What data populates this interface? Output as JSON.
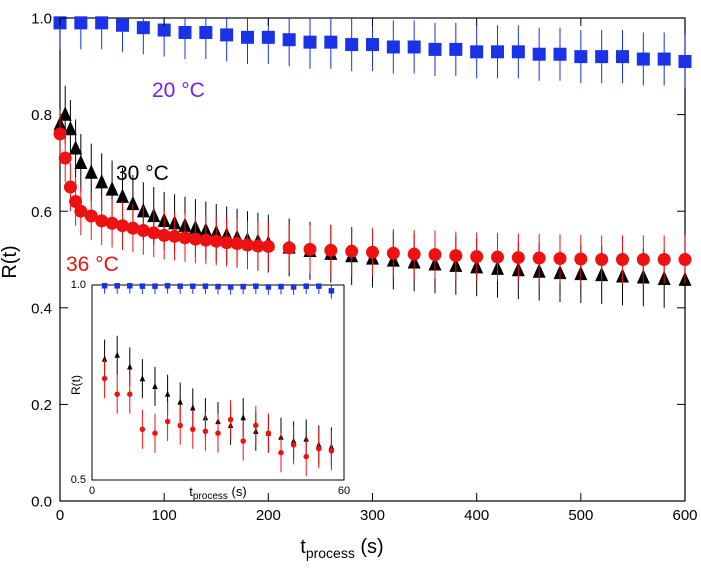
{
  "chart_data": [
    {
      "type": "scatter",
      "xlabel": "t",
      "xlabel_sub": "process",
      "xlabel_unit": " (s)",
      "ylabel": "R(t)",
      "xlim": [
        0,
        600
      ],
      "ylim": [
        0.0,
        1.0
      ],
      "xticks": [
        0,
        100,
        200,
        300,
        400,
        500,
        600
      ],
      "yticks": [
        0.0,
        0.2,
        0.4,
        0.6,
        0.8,
        1.0
      ],
      "xtick_labels": [
        "0",
        "100",
        "200",
        "300",
        "400",
        "500",
        "600"
      ],
      "ytick_labels": [
        "0.0",
        "0.2",
        "0.4",
        "0.6",
        "0.8",
        "1.0"
      ],
      "grid": false,
      "annotations": [
        {
          "text": "20 °C",
          "color": "#7b1fe0"
        },
        {
          "text": "30 °C",
          "color": "#000000"
        },
        {
          "text": "36 °C",
          "color": "#ee1111"
        }
      ],
      "series": [
        {
          "marker": "square",
          "color": "#1a33e6",
          "errorbar": 0.055,
          "x": [
            0,
            20,
            40,
            60,
            80,
            100,
            120,
            140,
            160,
            180,
            200,
            220,
            240,
            260,
            280,
            300,
            320,
            340,
            360,
            380,
            400,
            420,
            440,
            460,
            480,
            500,
            520,
            540,
            560,
            580,
            600
          ],
          "y": [
            0.99,
            0.99,
            0.99,
            0.985,
            0.98,
            0.975,
            0.97,
            0.97,
            0.965,
            0.96,
            0.96,
            0.955,
            0.95,
            0.95,
            0.945,
            0.945,
            0.94,
            0.94,
            0.935,
            0.935,
            0.93,
            0.93,
            0.93,
            0.925,
            0.925,
            0.92,
            0.92,
            0.92,
            0.915,
            0.915,
            0.91
          ]
        },
        {
          "marker": "triangle",
          "color": "#000000",
          "errorbar": 0.06,
          "x": [
            0,
            5,
            10,
            15,
            20,
            30,
            40,
            50,
            60,
            70,
            80,
            90,
            100,
            110,
            120,
            130,
            140,
            150,
            160,
            170,
            180,
            190,
            200,
            220,
            240,
            260,
            280,
            300,
            320,
            340,
            360,
            380,
            400,
            420,
            440,
            460,
            480,
            500,
            520,
            540,
            560,
            580,
            600
          ],
          "y": [
            0.78,
            0.8,
            0.77,
            0.73,
            0.7,
            0.68,
            0.66,
            0.645,
            0.63,
            0.615,
            0.6,
            0.59,
            0.58,
            0.575,
            0.57,
            0.565,
            0.56,
            0.555,
            0.55,
            0.545,
            0.54,
            0.537,
            0.533,
            0.525,
            0.518,
            0.512,
            0.507,
            0.502,
            0.498,
            0.494,
            0.49,
            0.487,
            0.484,
            0.481,
            0.478,
            0.475,
            0.472,
            0.47,
            0.468,
            0.465,
            0.463,
            0.46,
            0.458
          ]
        },
        {
          "marker": "circle",
          "color": "#ee1111",
          "errorbar": 0.05,
          "x": [
            0,
            5,
            10,
            15,
            20,
            30,
            40,
            50,
            60,
            70,
            80,
            90,
            100,
            110,
            120,
            130,
            140,
            150,
            160,
            170,
            180,
            190,
            200,
            220,
            240,
            260,
            280,
            300,
            320,
            340,
            360,
            380,
            400,
            420,
            440,
            460,
            480,
            500,
            520,
            540,
            560,
            580,
            600
          ],
          "y": [
            0.76,
            0.71,
            0.65,
            0.62,
            0.6,
            0.59,
            0.58,
            0.575,
            0.57,
            0.565,
            0.56,
            0.555,
            0.55,
            0.548,
            0.545,
            0.542,
            0.54,
            0.538,
            0.535,
            0.533,
            0.53,
            0.528,
            0.527,
            0.524,
            0.521,
            0.519,
            0.517,
            0.515,
            0.513,
            0.511,
            0.51,
            0.508,
            0.506,
            0.505,
            0.504,
            0.503,
            0.502,
            0.501,
            0.5,
            0.5,
            0.5,
            0.5,
            0.5
          ]
        }
      ]
    },
    {
      "type": "scatter",
      "xlabel": "t",
      "xlabel_sub": "process",
      "xlabel_unit": " (s)",
      "ylabel": "R(t)",
      "xlim": [
        0,
        60
      ],
      "ylim": [
        0.5,
        1.0
      ],
      "xticks": [
        0,
        60
      ],
      "yticks": [
        0.5,
        1.0
      ],
      "xtick_labels": [
        "0",
        "60"
      ],
      "ytick_labels": [
        "0.5",
        "1.0"
      ],
      "grid": false,
      "series": [
        {
          "marker": "square",
          "color": "#1a33e6",
          "errorbar": 0.02,
          "x": [
            3,
            6,
            9,
            12,
            15,
            18,
            21,
            24,
            27,
            30,
            33,
            36,
            39,
            42,
            45,
            48,
            51,
            54,
            57
          ],
          "y": [
            0.998,
            0.998,
            0.998,
            0.997,
            0.997,
            0.998,
            0.997,
            0.997,
            0.997,
            0.996,
            0.995,
            0.996,
            0.997,
            0.995,
            0.996,
            0.995,
            0.997,
            0.997,
            0.985
          ]
        },
        {
          "marker": "triangle",
          "color": "#000000",
          "errorbar": 0.05,
          "x": [
            3,
            6,
            9,
            12,
            15,
            18,
            21,
            24,
            27,
            30,
            33,
            36,
            39,
            42,
            45,
            48,
            51,
            54,
            57
          ],
          "y": [
            0.81,
            0.82,
            0.79,
            0.76,
            0.74,
            0.72,
            0.7,
            0.685,
            0.66,
            0.65,
            0.64,
            0.66,
            0.625,
            0.62,
            0.61,
            0.6,
            0.605,
            0.59,
            0.585
          ]
        },
        {
          "marker": "circle",
          "color": "#ee1111",
          "errorbar": 0.05,
          "x": [
            3,
            6,
            9,
            12,
            15,
            18,
            21,
            24,
            27,
            30,
            33,
            36,
            39,
            42,
            45,
            48,
            51,
            54,
            57
          ],
          "y": [
            0.76,
            0.72,
            0.72,
            0.63,
            0.62,
            0.65,
            0.64,
            0.63,
            0.625,
            0.62,
            0.655,
            0.6,
            0.64,
            0.62,
            0.57,
            0.59,
            0.56,
            0.58,
            0.575
          ]
        }
      ]
    }
  ]
}
